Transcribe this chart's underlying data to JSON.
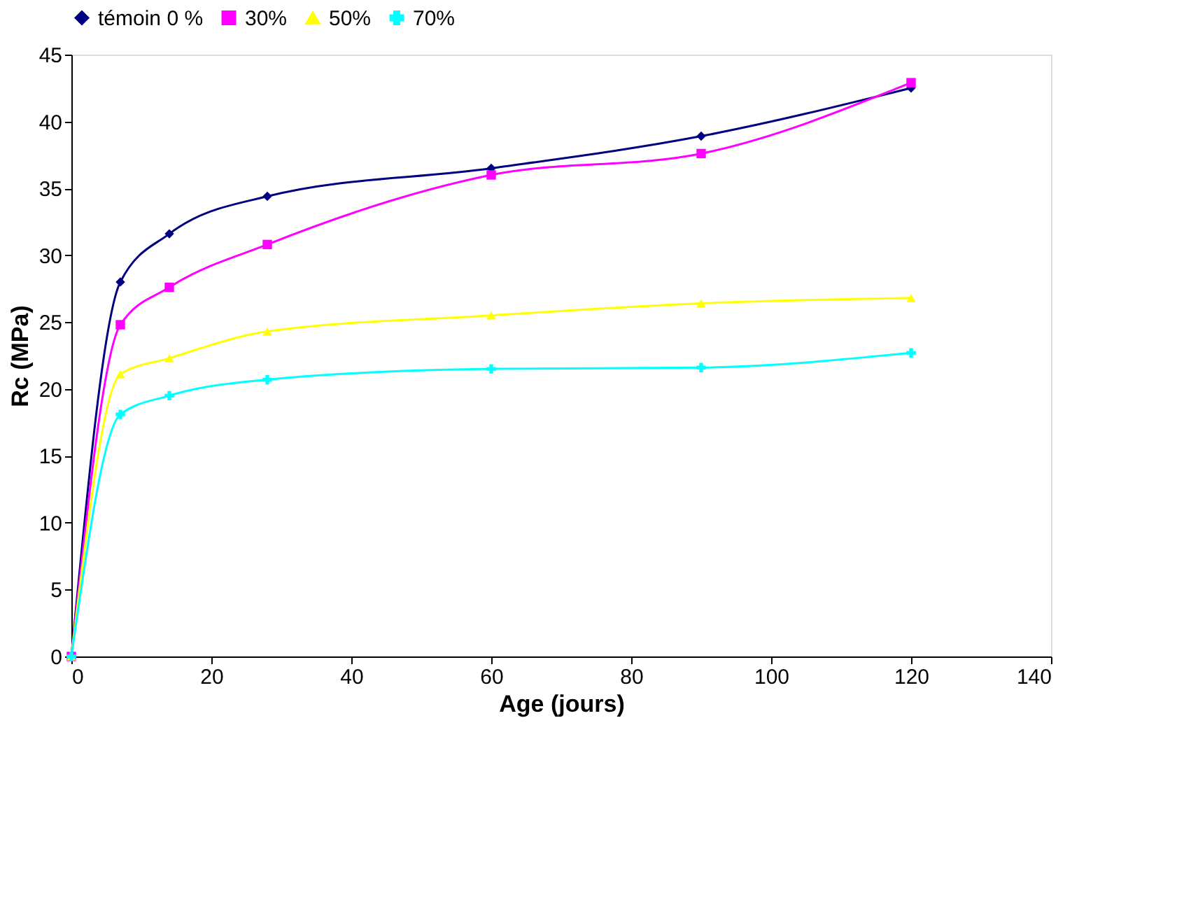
{
  "chart_data": {
    "type": "line",
    "xlabel": "Age (jours)",
    "ylabel": "Rc (MPa)",
    "x": [
      0,
      7,
      14,
      28,
      60,
      90,
      120
    ],
    "series": [
      {
        "name": "témoin 0 %",
        "color": "#000080",
        "marker": "diamond",
        "values": [
          0,
          28.0,
          31.6,
          34.4,
          36.5,
          38.9,
          42.5
        ]
      },
      {
        "name": "30%",
        "color": "#ff00ff",
        "marker": "square",
        "values": [
          0,
          24.8,
          27.6,
          30.8,
          36.0,
          37.6,
          42.9
        ]
      },
      {
        "name": "50%",
        "color": "#ffff00",
        "marker": "triangle",
        "values": [
          0,
          21.1,
          22.3,
          24.3,
          25.5,
          26.4,
          26.8
        ]
      },
      {
        "name": "70%",
        "color": "#00ffff",
        "marker": "cross",
        "values": [
          0,
          18.1,
          19.5,
          20.7,
          21.5,
          21.6,
          22.7
        ]
      }
    ],
    "xlim": [
      0,
      140
    ],
    "xticks": [
      0,
      20,
      40,
      60,
      80,
      100,
      120,
      140
    ],
    "ylim": [
      0,
      45
    ],
    "yticks": [
      0,
      5,
      10,
      15,
      20,
      25,
      30,
      35,
      40,
      45
    ],
    "grid": false,
    "legend": "top",
    "line_style": "solid"
  }
}
